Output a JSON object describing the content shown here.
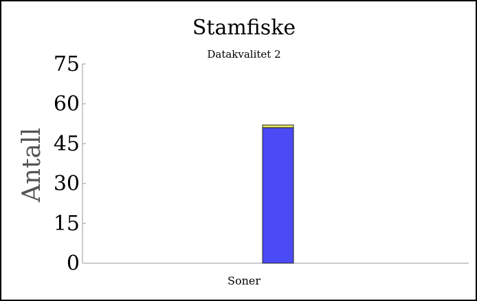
{
  "chart_data": {
    "type": "bar",
    "stacked": true,
    "title": "Stamfiske",
    "subtitle": "Datakvalitet 2",
    "xlabel": "Soner",
    "ylabel": "Antall",
    "ylim": [
      0,
      75
    ],
    "yticks": [
      "0",
      "15",
      "30",
      "45",
      "60",
      "75"
    ],
    "categories": [
      ""
    ],
    "series": [
      {
        "values": [
          51
        ],
        "color": "#4b4bf5"
      },
      {
        "values": [
          1
        ],
        "color": "#e8e85a"
      }
    ],
    "grid": false,
    "legend": "none"
  }
}
